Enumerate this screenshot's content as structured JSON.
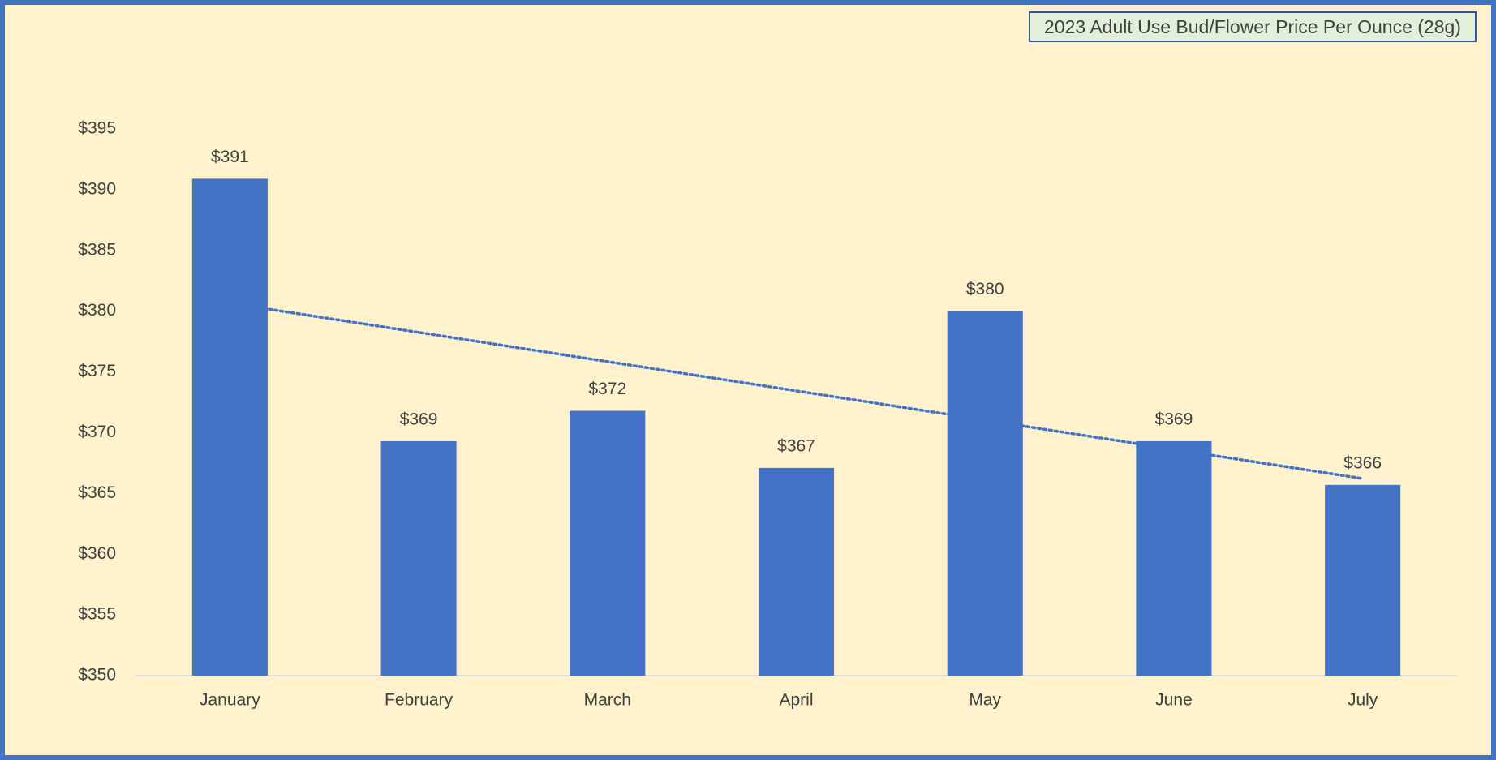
{
  "chart_data": {
    "type": "bar",
    "title": "2023 Adult Use Bud/Flower Price Per Ounce (28g)",
    "categories": [
      "January",
      "February",
      "March",
      "April",
      "May",
      "June",
      "July"
    ],
    "values": [
      390.9,
      369.3,
      371.8,
      367.1,
      380.0,
      369.3,
      365.7
    ],
    "value_labels": [
      "$391",
      "$369",
      "$372",
      "$367",
      "$380",
      "$369",
      "$366"
    ],
    "color": "#4472c4",
    "ylim": [
      350,
      395
    ],
    "yticks": [
      {
        "value": 350,
        "label": "$350"
      },
      {
        "value": 355,
        "label": "$355"
      },
      {
        "value": 360,
        "label": "$360"
      },
      {
        "value": 365,
        "label": "$365"
      },
      {
        "value": 370,
        "label": "$370"
      },
      {
        "value": 375,
        "label": "$375"
      },
      {
        "value": 380,
        "label": "$380"
      },
      {
        "value": 385,
        "label": "$385"
      },
      {
        "value": 390,
        "label": "$390"
      },
      {
        "value": 395,
        "label": "$395"
      }
    ],
    "grid": false,
    "trendline": "linear"
  }
}
